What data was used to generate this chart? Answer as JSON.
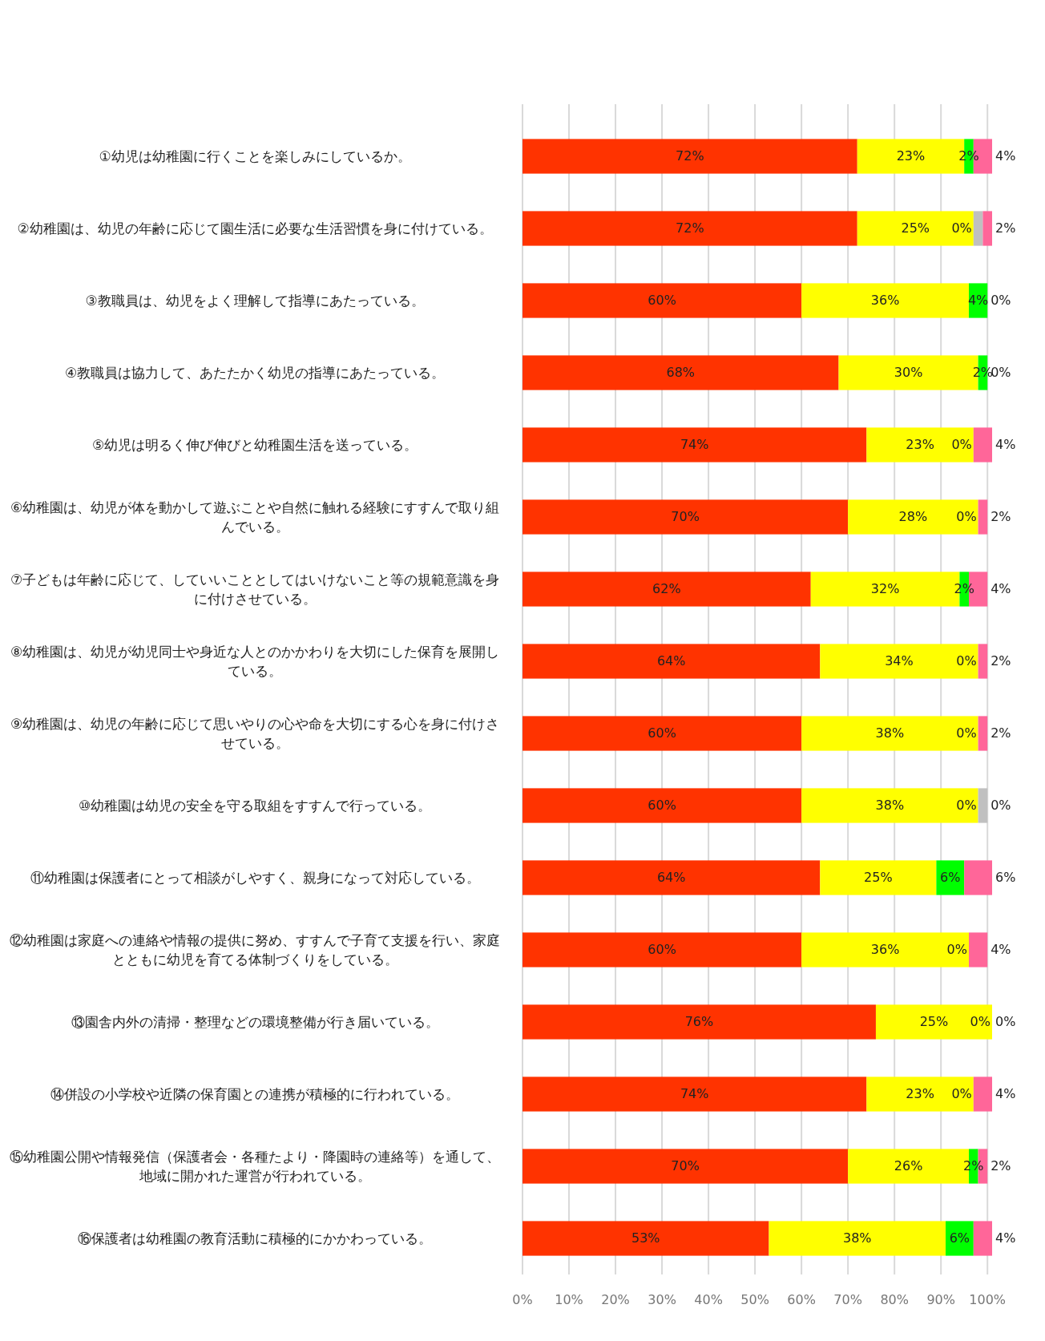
{
  "chart_data": {
    "type": "bar",
    "orientation": "horizontal",
    "stacked": true,
    "grid": "x",
    "categories": [
      "①幼児は幼稚園に行くことを楽しみにしているか。",
      "②幼稚園は、幼児の年齢に応じて園生活に必要な生活習慣を身に付けている。",
      "③教職員は、幼児をよく理解して指導にあたっている。",
      "④教職員は協力して、あたたかく幼児の指導にあたっている。",
      "⑤幼児は明るく伸び伸びと幼稚園生活を送っている。",
      "⑥幼稚園は、幼児が体を動かして遊ぶことや自然に触れる経験にすすんで取り組んでいる。",
      "⑦子どもは年齢に応じて、していいこととしてはいけないこと等の規範意識を身に付けさせている。",
      "⑧幼稚園は、幼児が幼児同士や身近な人とのかかわりを大切にした保育を展開している。",
      "⑨幼稚園は、幼児の年齢に応じて思いやりの心や命を大切にする心を身に付けさせている。",
      "⑩幼稚園は幼児の安全を守る取組をすすんで行っている。",
      "⑪幼稚園は保護者にとって相談がしやすく、親身になって対応している。",
      "⑫幼稚園は家庭への連絡や情報の提供に努め、すすんで子育て支援を行い、家庭とともに幼児を育てる体制づくりをしている。",
      "⑬園舎内外の清掃・整理などの環境整備が行き届いている。",
      "⑭併設の小学校や近隣の保育園との連携が積極的に行われている。",
      "⑮幼稚園公開や情報発信（保護者会・各種たより・降園時の連絡等）を通して、地域に開かれた運営が行われている。",
      "⑯保護者は幼稚園の教育活動に積極的にかかわっている。"
    ],
    "series": [
      {
        "color": "#ff3300",
        "values": [
          72,
          72,
          60,
          68,
          74,
          70,
          62,
          64,
          60,
          60,
          64,
          60,
          76,
          74,
          70,
          53
        ],
        "value_labels": [
          "72%",
          "72%",
          "60%",
          "68%",
          "74%",
          "70%",
          "62%",
          "64%",
          "60%",
          "60%",
          "64%",
          "60%",
          "76%",
          "74%",
          "70%",
          "53%"
        ]
      },
      {
        "color": "#ffff00",
        "values": [
          23,
          25,
          36,
          30,
          23,
          28,
          32,
          34,
          38,
          38,
          25,
          36,
          25,
          23,
          26,
          38
        ],
        "value_labels": [
          "23%",
          "25%",
          "36%",
          "30%",
          "23%",
          "28%",
          "32%",
          "34%",
          "38%",
          "38%",
          "25%",
          "36%",
          "25%",
          "23%",
          "26%",
          "38%"
        ]
      },
      {
        "color": "#00ff00",
        "values": [
          2,
          0,
          4,
          2,
          0,
          0,
          2,
          0,
          0,
          0,
          6,
          0,
          0,
          0,
          2,
          6
        ],
        "value_labels": [
          "2%",
          "0%",
          "4%",
          "2%",
          "0%",
          "0%",
          "2%",
          "0%",
          "0%",
          "0%",
          "6%",
          "0%",
          "0%",
          "0%",
          "2%",
          "6%"
        ]
      },
      {
        "color": "#c0c0c0",
        "values": [
          0,
          2,
          0,
          0,
          0,
          0,
          0,
          0,
          0,
          2,
          0,
          0,
          0,
          0,
          0,
          0
        ],
        "value_labels": [
          null,
          null,
          "0%",
          "0%",
          null,
          null,
          null,
          null,
          null,
          null,
          null,
          null,
          null,
          null,
          null,
          null
        ]
      },
      {
        "color": "#ff6699",
        "values": [
          4,
          2,
          0,
          0,
          4,
          2,
          4,
          2,
          2,
          0,
          6,
          4,
          0,
          4,
          2,
          4
        ],
        "value_labels": [
          "4%",
          "2%",
          null,
          null,
          "4%",
          "2%",
          "4%",
          "2%",
          "2%",
          "0%",
          "6%",
          "4%",
          "0%",
          "4%",
          "2%",
          "4%"
        ]
      }
    ],
    "xlim": [
      0,
      101
    ],
    "xticks": [
      {
        "value": 0,
        "label": "0%"
      },
      {
        "value": 10,
        "label": "10%"
      },
      {
        "value": 20,
        "label": "20%"
      },
      {
        "value": 30,
        "label": "30%"
      },
      {
        "value": 40,
        "label": "40%"
      },
      {
        "value": 50,
        "label": "50%"
      },
      {
        "value": 60,
        "label": "60%"
      },
      {
        "value": 70,
        "label": "70%"
      },
      {
        "value": 80,
        "label": "80%"
      },
      {
        "value": 90,
        "label": "90%"
      },
      {
        "value": 100,
        "label": "100%"
      }
    ]
  }
}
